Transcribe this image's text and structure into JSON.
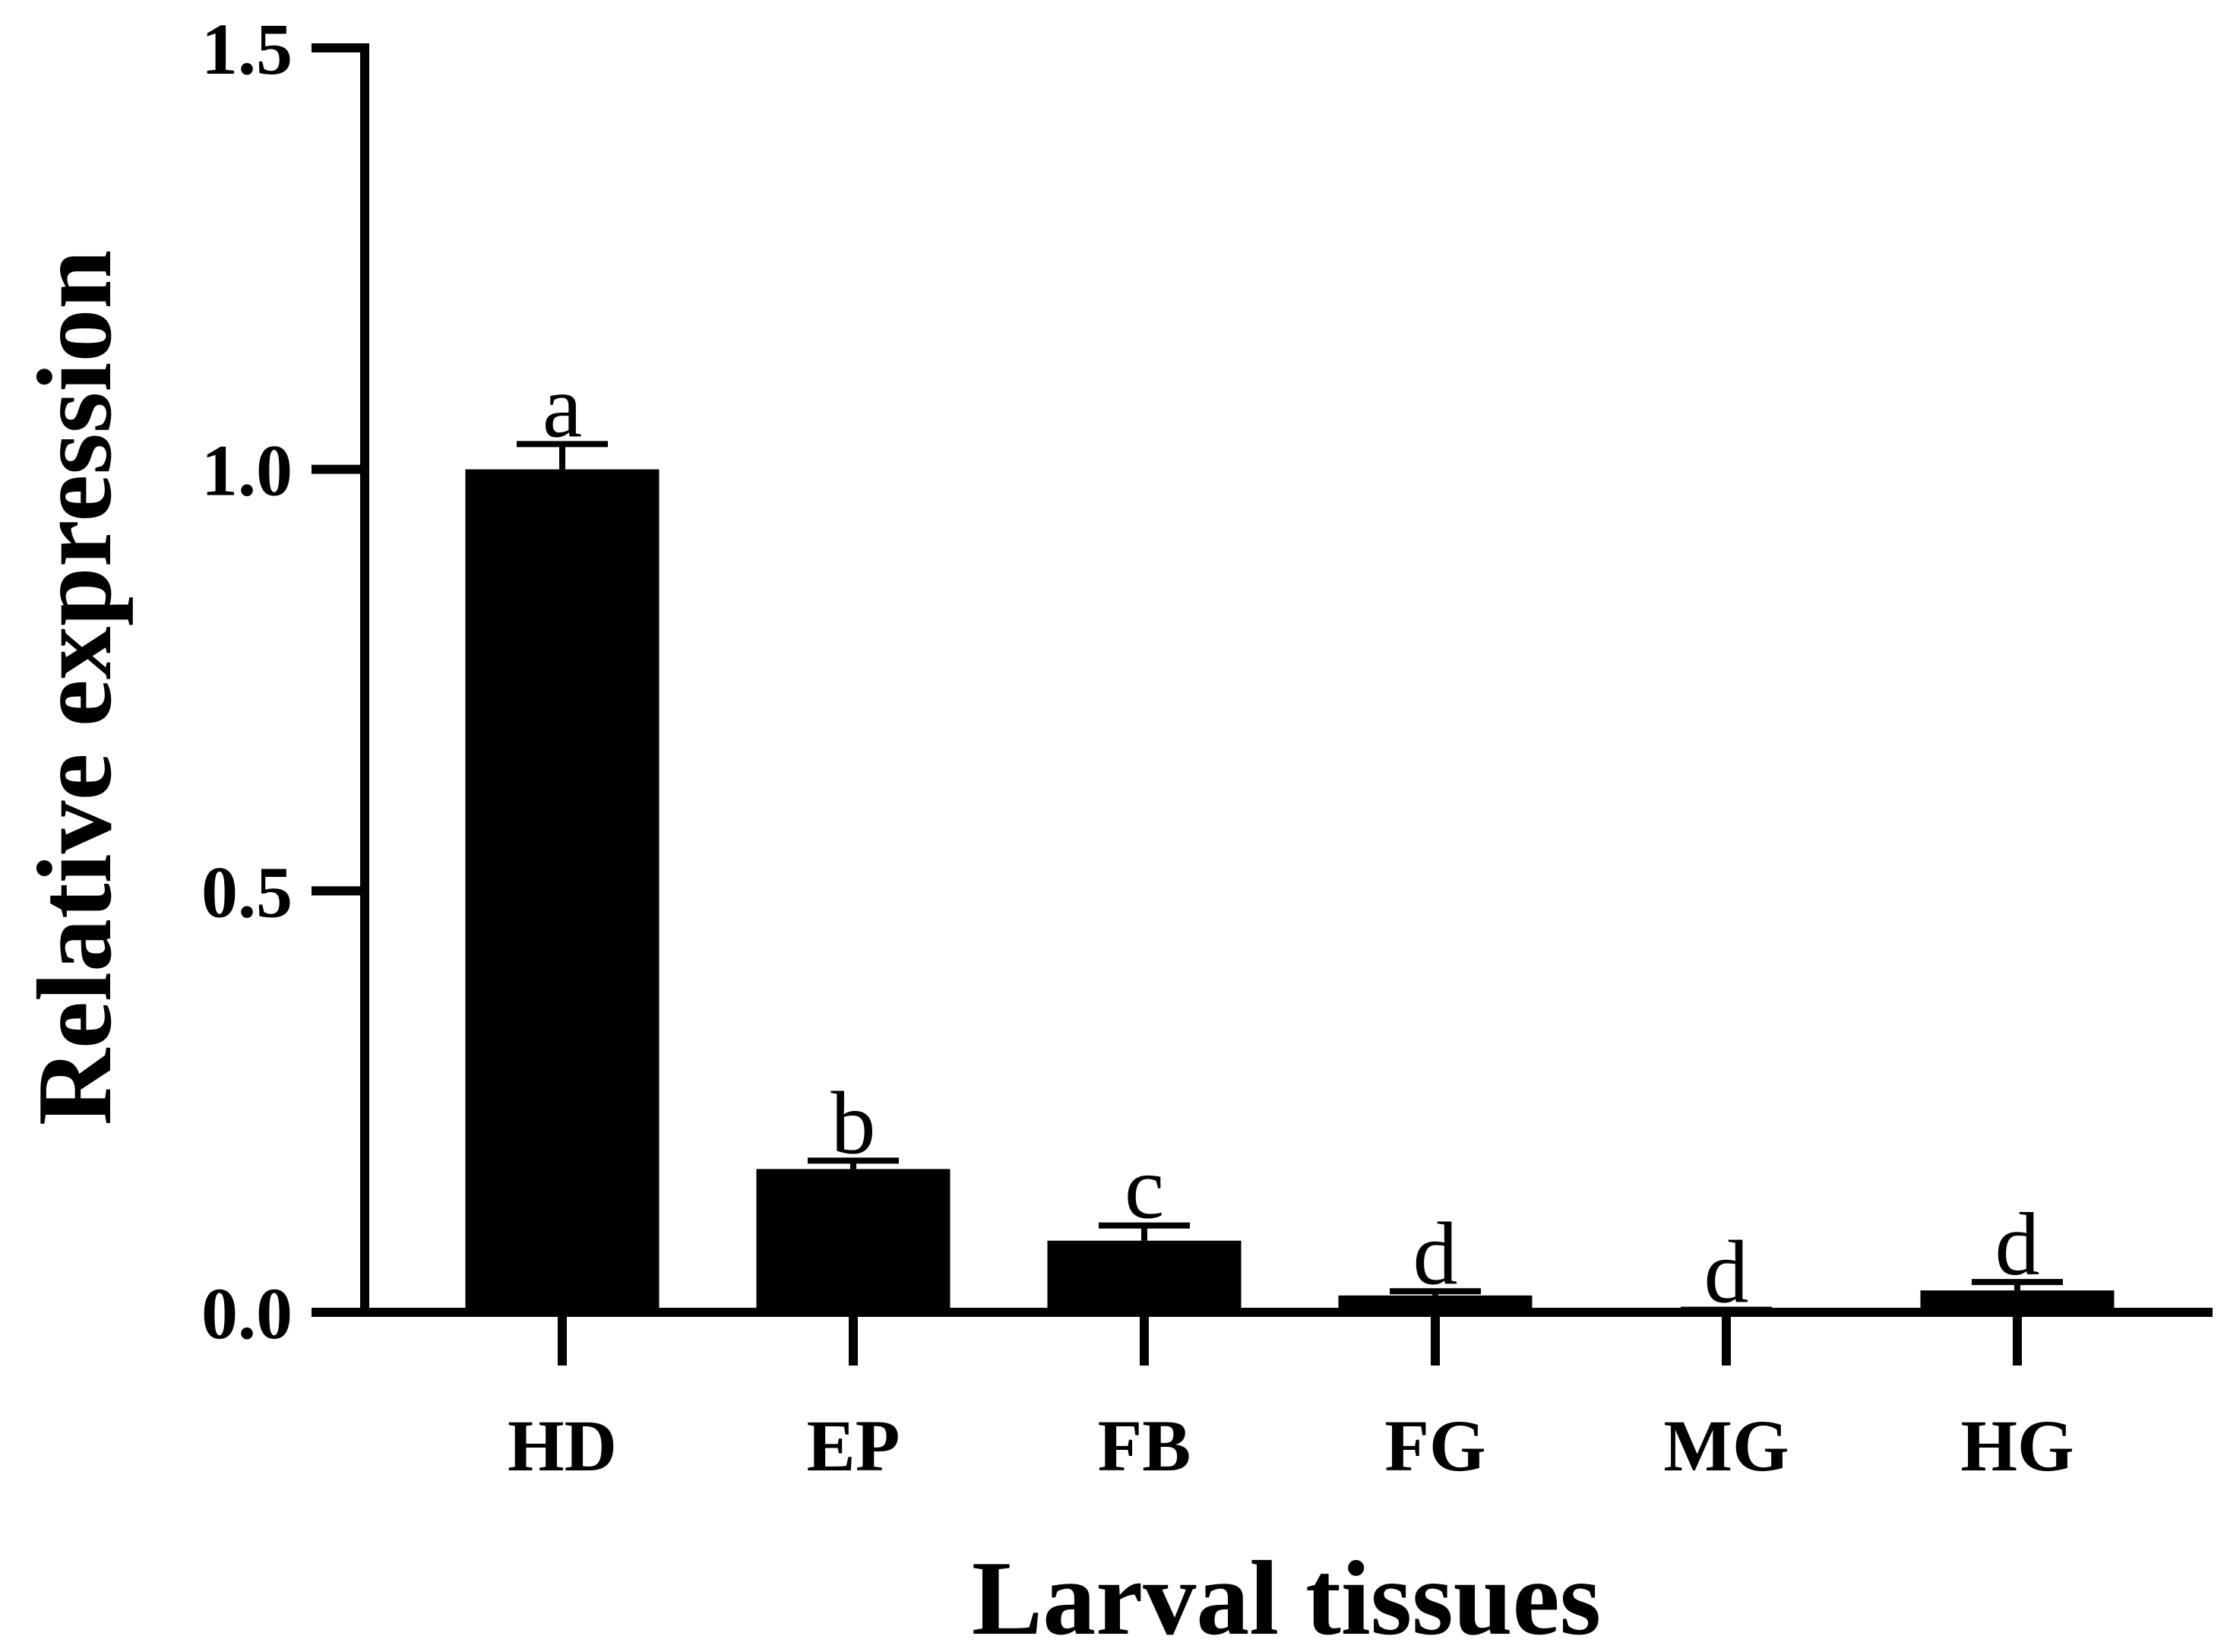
{
  "chart_data": {
    "type": "bar",
    "title": "",
    "xlabel": "Larval tissues",
    "ylabel": "Relative expression",
    "ylim": [
      0,
      1.5
    ],
    "yticks": [
      0,
      0.5,
      1.0,
      1.5
    ],
    "ytick_labels": [
      "0.0",
      "0.5",
      "1.0",
      "1.5"
    ],
    "grid": false,
    "legend": "none",
    "bar_color": "#000000",
    "categories": [
      "HD",
      "EP",
      "FB",
      "FG",
      "MG",
      "HG"
    ],
    "values": [
      1.0,
      0.17,
      0.085,
      0.02,
      0.002,
      0.026
    ],
    "errors": [
      0.03,
      0.01,
      0.018,
      0.005,
      0.001,
      0.01
    ],
    "significance": [
      "a",
      "b",
      "c",
      "d",
      "d",
      "d"
    ]
  }
}
